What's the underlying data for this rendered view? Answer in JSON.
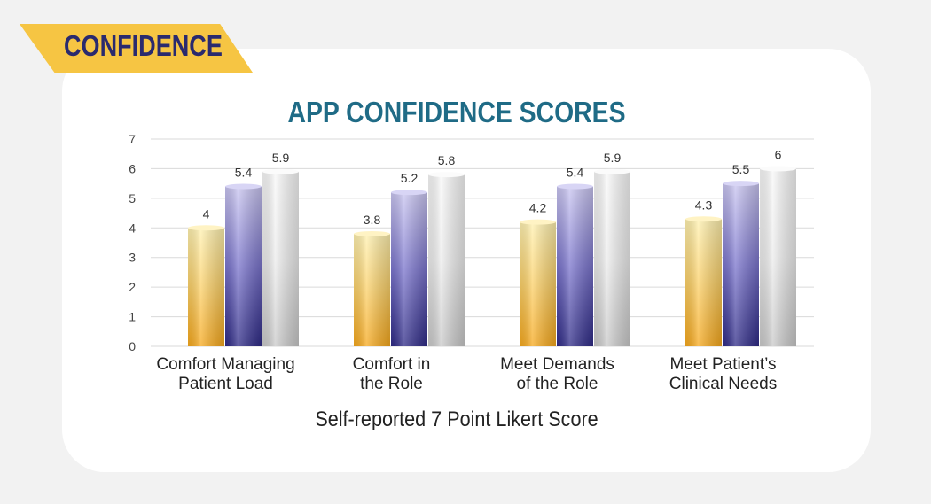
{
  "banner": {
    "label": "CONFIDENCE"
  },
  "chart_data": {
    "type": "bar",
    "title": "APP CONFIDENCE SCORES",
    "xlabel": "Self-reported 7 Point Likert Score",
    "ylabel": "",
    "ylim": [
      0,
      7
    ],
    "yticks": [
      0,
      1,
      2,
      3,
      4,
      5,
      6,
      7
    ],
    "grid": true,
    "legend": "none",
    "categories": [
      [
        "Comfort Managing",
        "Patient Load"
      ],
      [
        "Comfort in",
        "the Role"
      ],
      [
        "Meet Demands",
        "of the Role"
      ],
      [
        "Meet Patient’s",
        "Clinical Needs"
      ]
    ],
    "series": [
      {
        "values": [
          4,
          3.8,
          4.2,
          4.3
        ],
        "color": "#f7b733"
      },
      {
        "values": [
          5.4,
          5.2,
          5.4,
          5.5
        ],
        "color": "#4b45a8"
      },
      {
        "values": [
          5.9,
          5.8,
          5.9,
          6
        ],
        "color": "#d4d4d4"
      }
    ]
  }
}
